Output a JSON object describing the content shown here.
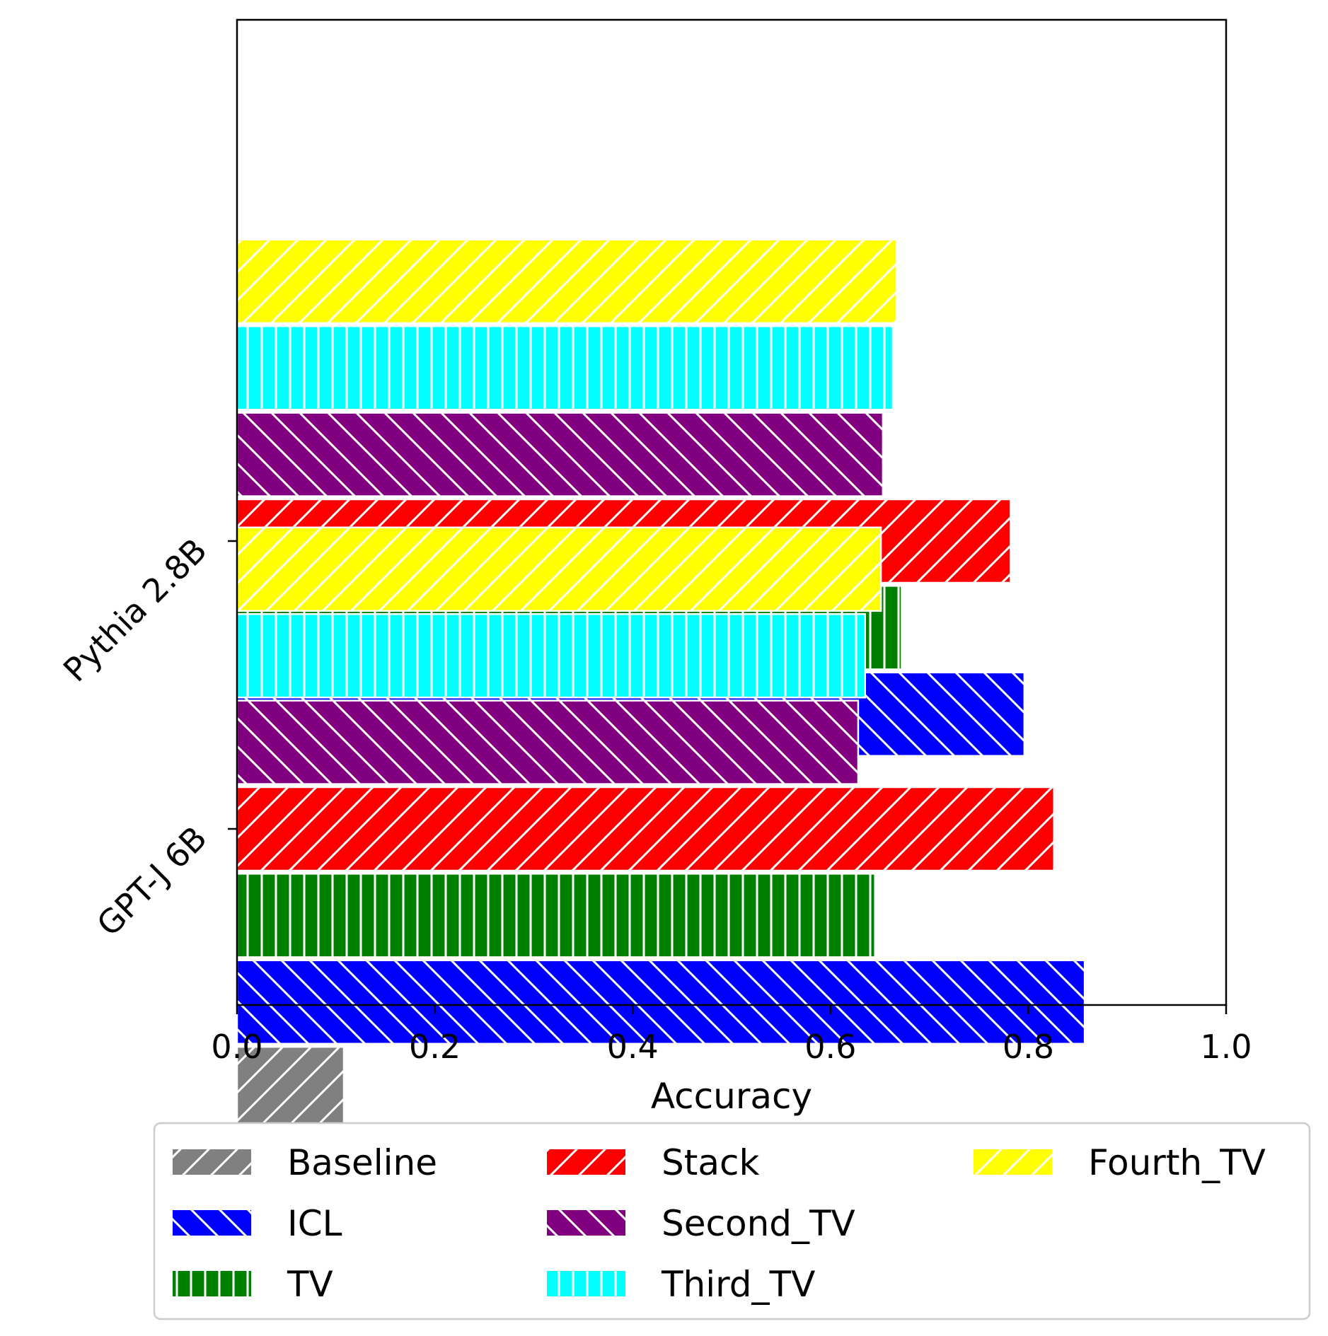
{
  "chart_data": {
    "type": "bar",
    "orientation": "horizontal",
    "xlabel": "Accuracy",
    "ylabel": "",
    "xlim": [
      0.0,
      1.0
    ],
    "xticks": [
      "0.0",
      "0.2",
      "0.4",
      "0.6",
      "0.8",
      "1.0"
    ],
    "categories": [
      "GPT-J 6B",
      "Pythia 2.8B"
    ],
    "series": [
      {
        "name": "Baseline",
        "color": "#808080",
        "hatch": "forward-diagonal",
        "values": [
          0.108,
          null
        ]
      },
      {
        "name": "ICL",
        "color": "#0000ff",
        "hatch": "back-diagonal",
        "values": [
          0.857,
          0.796
        ]
      },
      {
        "name": "TV",
        "color": "#008000",
        "hatch": "vertical",
        "values": [
          0.645,
          0.672
        ]
      },
      {
        "name": "Stack",
        "color": "#ff0000",
        "hatch": "forward-diagonal",
        "values": [
          0.826,
          0.782
        ]
      },
      {
        "name": "Second_TV",
        "color": "#800080",
        "hatch": "back-diagonal",
        "values": [
          0.628,
          0.653
        ]
      },
      {
        "name": "Third_TV",
        "color": "#00ffff",
        "hatch": "vertical",
        "values": [
          0.635,
          0.663
        ]
      },
      {
        "name": "Fourth_TV",
        "color": "#ffff00",
        "hatch": "forward-diagonal",
        "values": [
          0.651,
          0.667
        ]
      }
    ],
    "legend": {
      "placement": "below",
      "columns": 3
    },
    "grid": false
  }
}
